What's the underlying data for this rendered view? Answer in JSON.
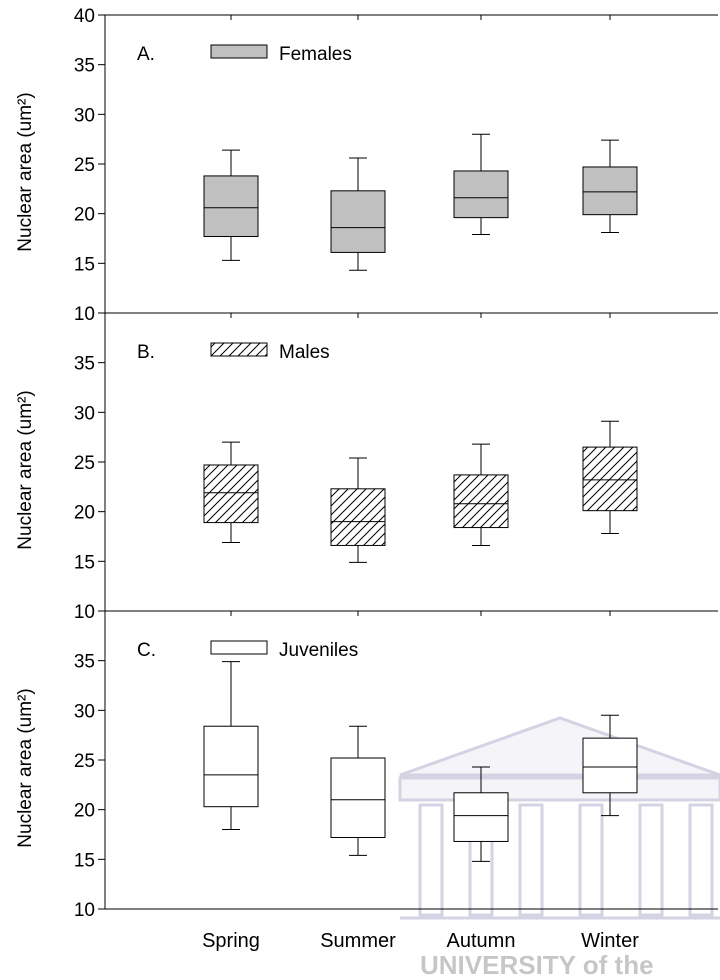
{
  "chart_data": {
    "type": "box",
    "ylabel": "Nuclear area (um²)",
    "ylim": [
      10,
      40
    ],
    "yticks": [
      10,
      15,
      20,
      25,
      30,
      35,
      40
    ],
    "categories": [
      "Spring",
      "Summer",
      "Autumn",
      "Winter"
    ],
    "panels": [
      {
        "label": "A.",
        "legend": "Females",
        "fill": "#c0c0c0",
        "pattern": "solid",
        "boxes": [
          {
            "category": "Spring",
            "min": 15.3,
            "q1": 17.7,
            "median": 20.6,
            "q3": 23.8,
            "max": 26.4
          },
          {
            "category": "Summer",
            "min": 14.3,
            "q1": 16.1,
            "median": 18.6,
            "q3": 22.3,
            "max": 25.6
          },
          {
            "category": "Autumn",
            "min": 17.9,
            "q1": 19.6,
            "median": 21.6,
            "q3": 24.3,
            "max": 28.0
          },
          {
            "category": "Winter",
            "min": 18.1,
            "q1": 19.9,
            "median": 22.2,
            "q3": 24.7,
            "max": 27.4
          }
        ]
      },
      {
        "label": "B.",
        "legend": "Males",
        "fill": "#ffffff",
        "pattern": "hatch",
        "boxes": [
          {
            "category": "Spring",
            "min": 16.9,
            "q1": 18.9,
            "median": 21.9,
            "q3": 24.7,
            "max": 27.0
          },
          {
            "category": "Summer",
            "min": 14.9,
            "q1": 16.6,
            "median": 19.0,
            "q3": 22.3,
            "max": 25.4
          },
          {
            "category": "Autumn",
            "min": 16.6,
            "q1": 18.4,
            "median": 20.8,
            "q3": 23.7,
            "max": 26.8
          },
          {
            "category": "Winter",
            "min": 17.8,
            "q1": 20.1,
            "median": 23.2,
            "q3": 26.5,
            "max": 29.1
          }
        ]
      },
      {
        "label": "C.",
        "legend": "Juveniles",
        "fill": "#ffffff",
        "pattern": "solid",
        "boxes": [
          {
            "category": "Spring",
            "min": 18.0,
            "q1": 20.3,
            "median": 23.5,
            "q3": 28.4,
            "max": 34.9
          },
          {
            "category": "Summer",
            "min": 15.4,
            "q1": 17.2,
            "median": 21.0,
            "q3": 25.2,
            "max": 28.4
          },
          {
            "category": "Autumn",
            "min": 14.8,
            "q1": 16.8,
            "median": 19.4,
            "q3": 21.7,
            "max": 24.3
          },
          {
            "category": "Winter",
            "min": 19.4,
            "q1": 21.7,
            "median": 24.3,
            "q3": 27.2,
            "max": 29.5
          }
        ]
      }
    ],
    "watermark": "UNIVERSITY of the"
  }
}
